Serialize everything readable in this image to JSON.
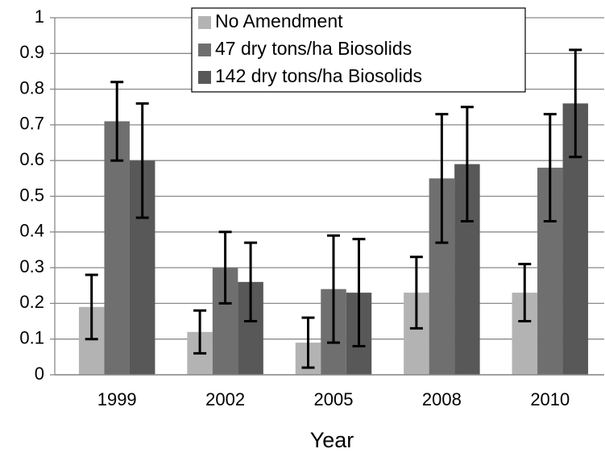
{
  "chart_data": {
    "type": "bar",
    "x_label": "Year",
    "categories": [
      "1999",
      "2002",
      "2005",
      "2008",
      "2010"
    ],
    "series": [
      {
        "name": "No Amendment",
        "color": "#b3b3b3",
        "values": [
          0.19,
          0.12,
          0.09,
          0.23,
          0.23
        ],
        "errors": [
          0.09,
          0.06,
          0.07,
          0.1,
          0.08
        ]
      },
      {
        "name": "47 dry tons/ha Biosolids",
        "color": "#6f6f6f",
        "values": [
          0.71,
          0.3,
          0.24,
          0.55,
          0.58
        ],
        "errors": [
          0.11,
          0.1,
          0.15,
          0.18,
          0.15
        ]
      },
      {
        "name": "142 dry tons/ha Biosolids",
        "color": "#585858",
        "values": [
          0.6,
          0.26,
          0.23,
          0.59,
          0.76
        ],
        "errors": [
          0.16,
          0.11,
          0.15,
          0.16,
          0.15
        ]
      }
    ],
    "ylim": [
      0,
      1
    ],
    "yticks": [
      0,
      0.1,
      0.2,
      0.3,
      0.4,
      0.5,
      0.6,
      0.7,
      0.8,
      0.9,
      1
    ],
    "grid": true,
    "legend": "top"
  }
}
